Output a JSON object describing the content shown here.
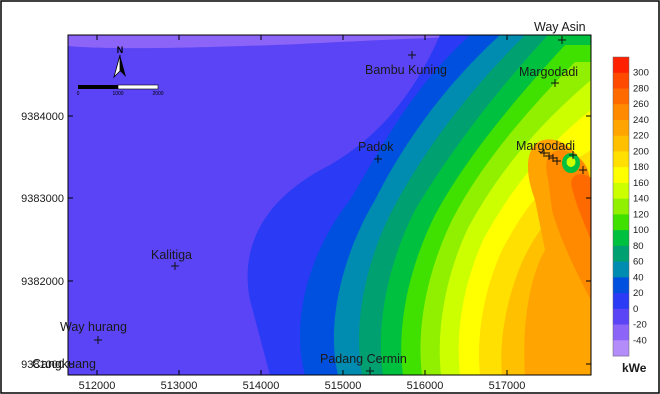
{
  "map": {
    "x_ticks": [
      "512000",
      "513000",
      "514000",
      "515000",
      "516000",
      "517000"
    ],
    "y_ticks": [
      "9384000",
      "9383000",
      "9382000",
      "9381000"
    ],
    "places": [
      "Way Asin",
      "Bambu Kuning",
      "Margodadi",
      "Padok",
      "Margodadi",
      "Kalitiga",
      "Way hurang",
      "Cangkuang",
      "Padang Cermin"
    ],
    "north_label": "N",
    "scale_labels": [
      "0",
      "1000",
      "2000"
    ]
  },
  "colorbar": {
    "unit": "kWe",
    "ticks": [
      "300",
      "280",
      "260",
      "240",
      "220",
      "200",
      "180",
      "160",
      "140",
      "120",
      "100",
      "80",
      "60",
      "40",
      "20",
      "0",
      "-20",
      "-40"
    ],
    "colors": [
      "#ff2000",
      "#ff4a00",
      "#ff6a00",
      "#ff8a00",
      "#ffa400",
      "#ffc000",
      "#ffe000",
      "#ffff00",
      "#ccff00",
      "#90f000",
      "#40e000",
      "#00c040",
      "#00a070",
      "#008bb0",
      "#0050e0",
      "#2a3af5",
      "#5a44f5",
      "#8c64f8",
      "#b48cfa"
    ]
  }
}
